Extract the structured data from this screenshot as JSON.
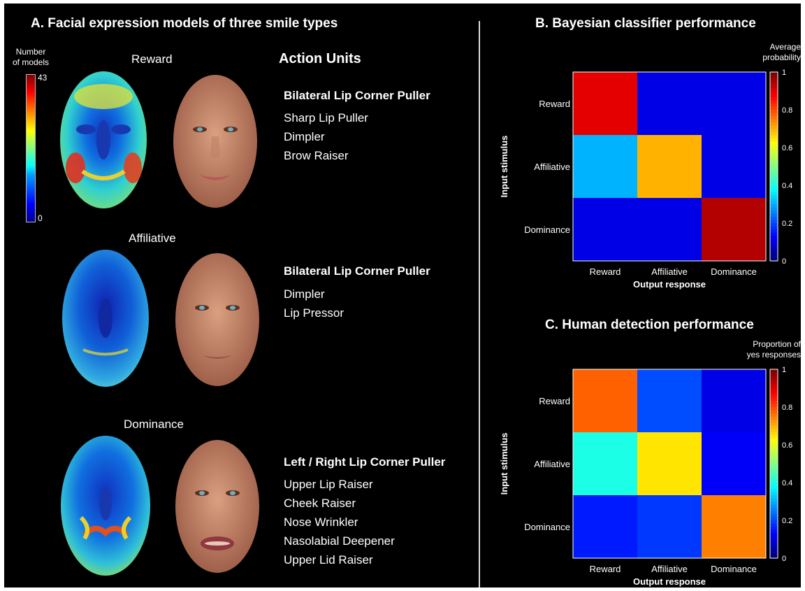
{
  "panel_a": {
    "title": "A. Facial expression models of three smile types",
    "colorbar": {
      "label_line1": "Number",
      "label_line2": "of models",
      "max": "43",
      "min": "0"
    },
    "action_units_header": "Action Units",
    "models": [
      {
        "name": "Reward",
        "primary_au": "Bilateral Lip Corner Puller",
        "other_aus": [
          "Sharp Lip Puller",
          "Dimpler",
          "Brow Raiser"
        ]
      },
      {
        "name": "Affiliative",
        "primary_au": "Bilateral Lip Corner Puller",
        "other_aus": [
          "Dimpler",
          "Lip Pressor"
        ]
      },
      {
        "name": "Dominance",
        "primary_au": "Left / Right Lip Corner Puller",
        "other_aus": [
          "Upper Lip Raiser",
          "Cheek Raiser",
          "Nose Wrinkler",
          "Nasolabial Deepener",
          "Upper Lid Raiser"
        ]
      }
    ]
  },
  "chart_data": [
    {
      "type": "heatmap",
      "title": "B. Bayesian classifier performance",
      "xlabel": "Output response",
      "ylabel": "Input stimulus",
      "x_categories": [
        "Reward",
        "Affiliative",
        "Dominance"
      ],
      "y_categories": [
        "Reward",
        "Affiliative",
        "Dominance"
      ],
      "values": [
        [
          0.9,
          0.1,
          0.1
        ],
        [
          0.3,
          0.7,
          0.1
        ],
        [
          0.1,
          0.1,
          0.95
        ]
      ],
      "colorbar_label_line1": "Average",
      "colorbar_label_line2": "probability",
      "colorbar_ticks": [
        "0",
        "0.2",
        "0.4",
        "0.6",
        "0.8",
        "1"
      ],
      "colormap": "jet"
    },
    {
      "type": "heatmap",
      "title": "C. Human detection performance",
      "xlabel": "Output response",
      "ylabel": "Input stimulus",
      "x_categories": [
        "Reward",
        "Affiliative",
        "Dominance"
      ],
      "y_categories": [
        "Reward",
        "Affiliative",
        "Dominance"
      ],
      "values": [
        [
          0.78,
          0.2,
          0.1
        ],
        [
          0.4,
          0.65,
          0.12
        ],
        [
          0.15,
          0.18,
          0.75
        ]
      ],
      "colorbar_label_line1": "Proportion of",
      "colorbar_label_line2": "yes responses",
      "colorbar_ticks": [
        "0",
        "0.2",
        "0.4",
        "0.6",
        "0.8",
        "1"
      ],
      "colormap": "jet"
    }
  ]
}
